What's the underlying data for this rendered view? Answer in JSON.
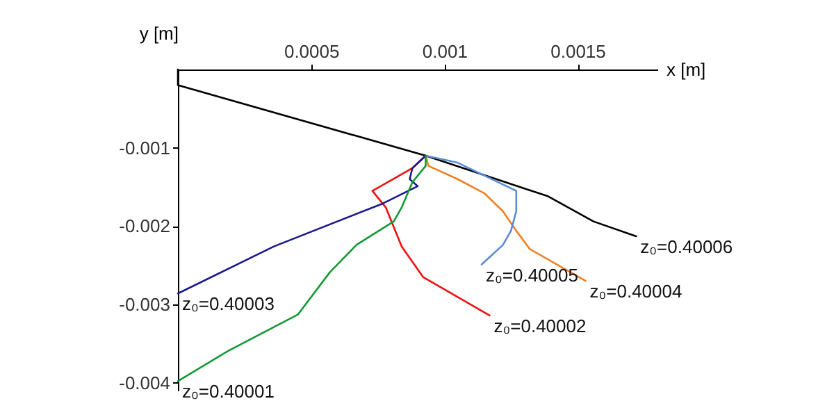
{
  "chart_data": {
    "type": "line",
    "xlabel": "x [m]",
    "ylabel": "y [m]",
    "xlim": [
      0,
      0.0018
    ],
    "ylim": [
      -0.0041,
      0
    ],
    "xticks": [
      0.0005,
      0.001,
      0.0015
    ],
    "yticks": [
      -0.001,
      -0.002,
      -0.003,
      -0.004
    ],
    "grid": false,
    "legend": false,
    "marker": "none",
    "line_style": "solid",
    "series": [
      {
        "name": "z₀=0.40006",
        "color": "#000000",
        "x": [
          0,
          0,
          0.00093,
          0.00139,
          0.00156,
          0.00172
        ],
        "values": [
          0,
          -0.0002,
          -0.0011,
          -0.00162,
          -0.00194,
          -0.00213
        ]
      },
      {
        "name": "z₀=0.40004",
        "color": "#f08020",
        "x": [
          0.00093,
          0.00094,
          0.00105,
          0.00115,
          0.00122,
          0.00127,
          0.00132,
          0.00153
        ],
        "values": [
          -0.0011,
          -0.00123,
          -0.0014,
          -0.00158,
          -0.00181,
          -0.00206,
          -0.00229,
          -0.0027
        ]
      },
      {
        "name": "z₀=0.40005",
        "color": "#5b8bd6",
        "x": [
          0.00093,
          0.00105,
          0.00127,
          0.00127,
          0.00125,
          0.00122,
          0.00114
        ],
        "values": [
          -0.0011,
          -0.00119,
          -0.00155,
          -0.00181,
          -0.00206,
          -0.00224,
          -0.00249
        ]
      },
      {
        "name": "z₀=0.40002",
        "color": "#ee1111",
        "x": [
          0.00093,
          0.00088,
          0.00073,
          0.00078,
          0.00084,
          0.00092,
          0.00117
        ],
        "values": [
          -0.0011,
          -0.00126,
          -0.00155,
          -0.00176,
          -0.00226,
          -0.00265,
          -0.00314
        ]
      },
      {
        "name": "z₀=0.40003",
        "color": "#1a1a8c",
        "x": [
          0.00093,
          0.00088,
          0.00087,
          0.0009,
          0.00077,
          0.00036,
          0
        ],
        "values": [
          -0.0011,
          -0.00126,
          -0.0014,
          -0.00149,
          -0.00171,
          -0.00226,
          -0.00286
        ]
      },
      {
        "name": "z₀=0.40001",
        "color": "#119933",
        "x": [
          0.00093,
          0.00093,
          0.00088,
          0.00084,
          0.00081,
          0.00067,
          0.00057,
          0.00045,
          0.00019,
          0
        ],
        "values": [
          -0.0011,
          -0.00123,
          -0.00144,
          -0.00176,
          -0.00194,
          -0.00224,
          -0.00259,
          -0.00313,
          -0.00359,
          -0.00398
        ]
      }
    ]
  }
}
